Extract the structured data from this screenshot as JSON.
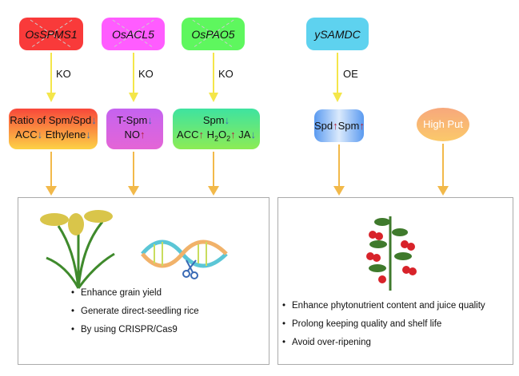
{
  "genes": [
    {
      "name": "OsSPMS1",
      "color": "#f93a3a",
      "crossed": true
    },
    {
      "name": "OsACL5",
      "color": "#ff5cff",
      "crossed": true
    },
    {
      "name": "OsPAO5",
      "color": "#5ef75e",
      "crossed": true
    },
    {
      "name": "ySAMDC",
      "color": "#5ed2ef",
      "crossed": false
    }
  ],
  "edge_labels": [
    "KO",
    "KO",
    "KO",
    "OE"
  ],
  "effects": {
    "box1": {
      "line1": "Ratio of Spm/Spd",
      "line1_dir": "down",
      "acc": "ACC",
      "acc_dir": "down",
      "ethylene": "Ethylene",
      "ethylene_dir": "down"
    },
    "box2": {
      "tspm": "T-Spm",
      "tspm_dir": "down",
      "no": "NO",
      "no_dir": "up"
    },
    "box3": {
      "spm": "Spm",
      "spm_dir": "down",
      "acc": "ACC",
      "acc_dir": "up",
      "h2o2": "H",
      "h2o2_sub1": "2",
      "h2o2_o": "O",
      "h2o2_sub2": "2",
      "h2o2_dir": "up",
      "ja": "JA",
      "ja_dir": "down"
    },
    "box4": {
      "spd": "Spd",
      "spd_dir": "up",
      "spm": "Spm",
      "spm_dir": "up"
    },
    "high_put": "High Put"
  },
  "arrow_symbols": {
    "up": "↑",
    "down": "↓"
  },
  "rice_panel": {
    "bullets": [
      "Enhance grain yield",
      "Generate direct-seedling rice",
      "By using CRISPR/Cas9"
    ]
  },
  "tomato_panel": {
    "bullets": [
      "Enhance phytonutrient content and juice quality",
      "Prolong keeping quality and shelf life",
      "Avoid over-ripening"
    ]
  }
}
